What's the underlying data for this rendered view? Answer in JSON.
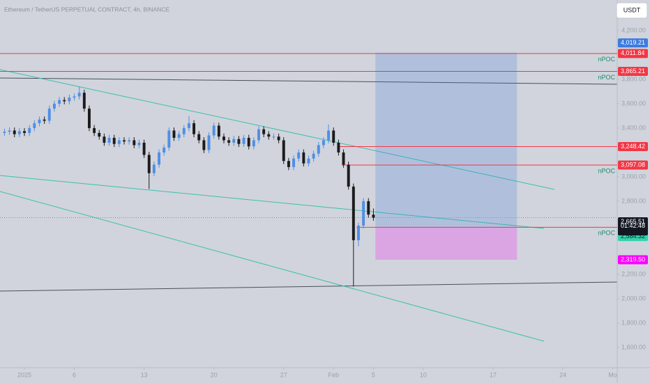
{
  "chart_data": {
    "type": "candlestick",
    "title": "Ethereum / TetherUS PERPETUAL CONTRACT, 4h, BINANCE",
    "currency": "USDT",
    "up_color": "#4f8fe6",
    "down_color": "#1b1b1b",
    "x": [
      -1,
      -0.5,
      0,
      0.5,
      1,
      1.5,
      2,
      2.5,
      3,
      3.5,
      4,
      4.5,
      5,
      5.5,
      6,
      6.5,
      7,
      7.5,
      8,
      8.5,
      9,
      9.5,
      10,
      10.5,
      11,
      11.5,
      12,
      12.5,
      13,
      13.5,
      14,
      14.5,
      15,
      15.5,
      16,
      16.5,
      17,
      17.5,
      18,
      18.5,
      19,
      19.5,
      20,
      20.5,
      21,
      21.5,
      22,
      22.5,
      23,
      23.5,
      24,
      24.5,
      25,
      25.5,
      26,
      26.5,
      27,
      27.5,
      28,
      28.5,
      29,
      29.5,
      30,
      30.5,
      31,
      31.5,
      32,
      32.5,
      33,
      33.5,
      34,
      34.5,
      35,
      35.5,
      36
    ],
    "open": [
      3360,
      3370,
      3380,
      3350,
      3375,
      3360,
      3400,
      3440,
      3470,
      3460,
      3560,
      3600,
      3630,
      3620,
      3650,
      3660,
      3690,
      3560,
      3400,
      3360,
      3330,
      3280,
      3320,
      3270,
      3300,
      3290,
      3300,
      3260,
      3280,
      3180,
      3030,
      3100,
      3200,
      3240,
      3380,
      3320,
      3350,
      3400,
      3440,
      3350,
      3300,
      3220,
      3340,
      3420,
      3330,
      3300,
      3280,
      3310,
      3270,
      3320,
      3250,
      3300,
      3390,
      3350,
      3330,
      3330,
      3300,
      3130,
      3080,
      3150,
      3200,
      3110,
      3150,
      3190,
      3260,
      3300,
      3380,
      3280,
      3200,
      3100,
      2920,
      2480,
      2600,
      2800,
      2690
    ],
    "high": [
      3395,
      3405,
      3405,
      3400,
      3400,
      3425,
      3465,
      3495,
      3495,
      3585,
      3625,
      3655,
      3655,
      3675,
      3685,
      3740,
      3715,
      3585,
      3425,
      3385,
      3355,
      3345,
      3345,
      3325,
      3325,
      3325,
      3325,
      3305,
      3305,
      3205,
      3125,
      3225,
      3265,
      3405,
      3405,
      3375,
      3425,
      3500,
      3465,
      3375,
      3325,
      3365,
      3445,
      3445,
      3355,
      3325,
      3335,
      3335,
      3345,
      3345,
      3325,
      3415,
      3415,
      3375,
      3355,
      3355,
      3325,
      3155,
      3175,
      3225,
      3225,
      3175,
      3215,
      3285,
      3325,
      3430,
      3405,
      3305,
      3225,
      3125,
      2945,
      2625,
      2825,
      2825,
      2740
    ],
    "low": [
      3335,
      3345,
      3325,
      3325,
      3335,
      3335,
      3375,
      3415,
      3435,
      3435,
      3535,
      3575,
      3595,
      3595,
      3625,
      3635,
      3535,
      3375,
      3335,
      3305,
      3255,
      3255,
      3245,
      3245,
      3265,
      3265,
      3235,
      3235,
      3155,
      2900,
      3005,
      3075,
      3175,
      3215,
      3295,
      3295,
      3325,
      3375,
      3325,
      3275,
      3195,
      3195,
      3315,
      3305,
      3275,
      3255,
      3255,
      3245,
      3245,
      3225,
      3225,
      3275,
      3325,
      3305,
      3305,
      3275,
      3105,
      3055,
      3055,
      3125,
      3085,
      3085,
      3125,
      3165,
      3235,
      3275,
      3255,
      3175,
      3075,
      2895,
      2100,
      2430,
      2575,
      2665,
      2640
    ],
    "close": [
      3370,
      3380,
      3350,
      3375,
      3360,
      3400,
      3440,
      3470,
      3460,
      3560,
      3600,
      3630,
      3620,
      3650,
      3660,
      3690,
      3560,
      3400,
      3360,
      3330,
      3280,
      3320,
      3270,
      3300,
      3290,
      3300,
      3260,
      3280,
      3180,
      3030,
      3100,
      3200,
      3240,
      3380,
      3320,
      3350,
      3400,
      3440,
      3350,
      3300,
      3220,
      3340,
      3420,
      3330,
      3300,
      3280,
      3310,
      3270,
      3320,
      3250,
      3300,
      3390,
      3350,
      3330,
      3330,
      3300,
      3130,
      3080,
      3150,
      3200,
      3110,
      3150,
      3190,
      3260,
      3300,
      3380,
      3280,
      3200,
      3100,
      2920,
      2480,
      2600,
      2800,
      2690,
      2665
    ],
    "xlim": [
      -1.45,
      60.45
    ],
    "xticks": [
      {
        "value": 1,
        "label": "2025"
      },
      {
        "value": 6,
        "label": "6"
      },
      {
        "value": 13,
        "label": "13"
      },
      {
        "value": 20,
        "label": "20"
      },
      {
        "value": 27,
        "label": "27"
      },
      {
        "value": 32,
        "label": "Feb"
      },
      {
        "value": 36,
        "label": "5"
      },
      {
        "value": 41,
        "label": "10"
      },
      {
        "value": 48,
        "label": "17"
      },
      {
        "value": 55,
        "label": "24"
      },
      {
        "value": 60,
        "label": "Mo"
      }
    ],
    "ylim": [
      1434,
      4451
    ],
    "yticks": [
      {
        "value": 1600,
        "label": "1,600.00"
      },
      {
        "value": 1800,
        "label": "1,800.00"
      },
      {
        "value": 2000,
        "label": "2,000.00"
      },
      {
        "value": 2200,
        "label": "2,200.00"
      },
      {
        "value": 2800,
        "label": "2,800.00"
      },
      {
        "value": 3000,
        "label": "3,000.00"
      },
      {
        "value": 3400,
        "label": "3,400.00"
      },
      {
        "value": 3600,
        "label": "3,600.00"
      },
      {
        "value": 3800,
        "label": "3,800.00"
      },
      {
        "value": 4200,
        "label": "4,200.00"
      }
    ],
    "levels": [
      {
        "value": 4011.84,
        "label": "4,011.84",
        "note": "nPOC",
        "color": "#f23645"
      },
      {
        "value": 3865.21,
        "label": "3,865.21",
        "note": "nPOC",
        "color": "#f23645"
      },
      {
        "value": 3248.42,
        "label": "3,248.42",
        "from": 32.5,
        "color": "#f23645"
      },
      {
        "value": 3097.08,
        "label": "3,097.08",
        "note": "nPOC",
        "from": 32.8,
        "color": "#f23645"
      },
      {
        "value": 2586.21,
        "label": "2,586.21",
        "note": "nPOC",
        "from": 34.3,
        "color": "#f23645"
      }
    ],
    "position": {
      "from": 36.2,
      "to": 50.4,
      "target": {
        "value": 4019.21,
        "label": "4,019.21",
        "color": "#3d7be0"
      },
      "entry": {
        "value": 2584.32,
        "label": "2,584.32",
        "color": "#34d1ae"
      },
      "stop": {
        "value": 2319.5,
        "label": "2,319.50",
        "color": "#ff00ff"
      }
    },
    "last_price": {
      "value": 2665.51,
      "label": "2,665.51",
      "countdown": "01:42:48"
    }
  }
}
